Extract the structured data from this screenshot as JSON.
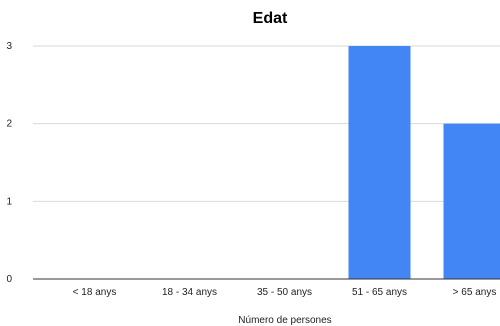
{
  "chart_data": {
    "type": "bar",
    "title": "Edat",
    "xlabel": "Número de persones",
    "ylabel": "",
    "categories": [
      "< 18 anys",
      "18 - 34 anys",
      "35 - 50 anys",
      "51 - 65 anys",
      "> 65 anys"
    ],
    "values": [
      0,
      0,
      0,
      3,
      2
    ],
    "ylim": [
      0,
      3
    ],
    "yticks": [
      "0",
      "1",
      "2",
      "3"
    ],
    "bar_color": "#4285f4",
    "grid": true,
    "legend": "none"
  }
}
